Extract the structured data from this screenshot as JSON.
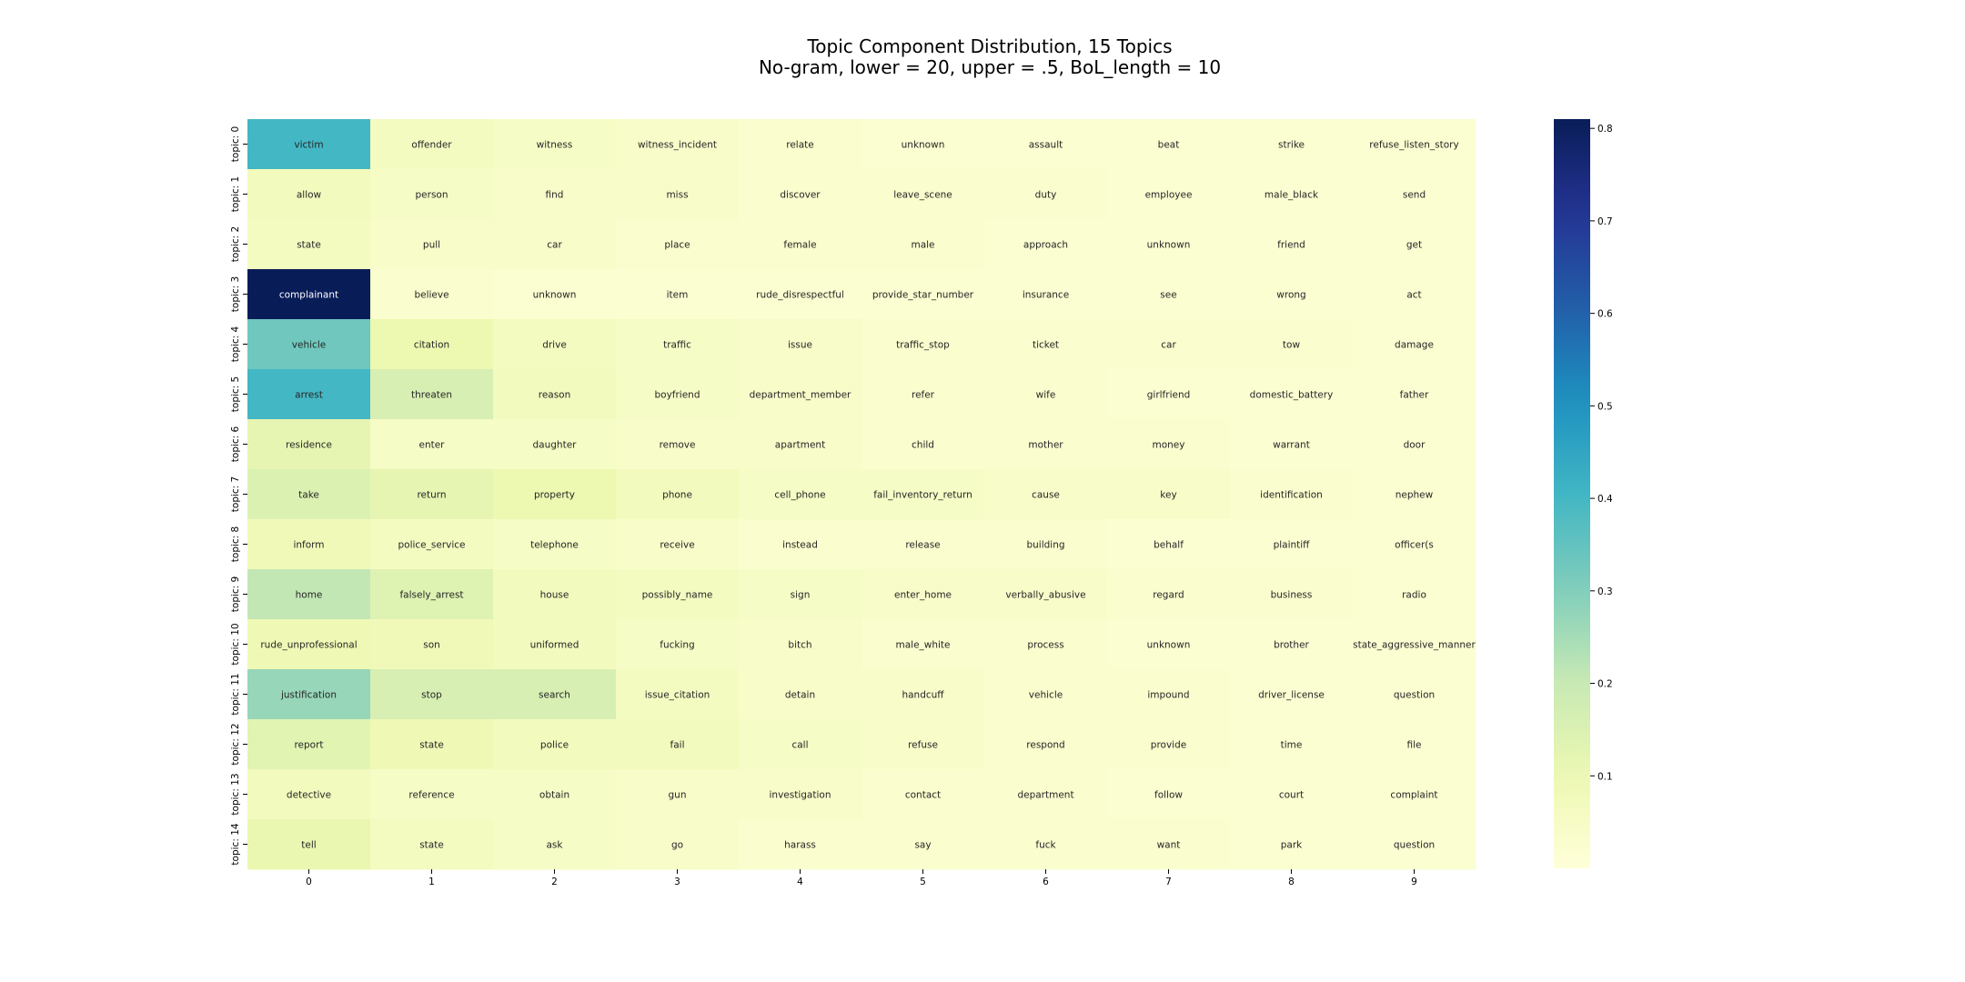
{
  "chart_data": {
    "type": "heatmap",
    "title_lines": [
      "Topic Component Distribution, 15 Topics",
      "No-gram, lower = 20, upper = .5, BoL_length = 10"
    ],
    "x_categories": [
      "0",
      "1",
      "2",
      "3",
      "4",
      "5",
      "6",
      "7",
      "8",
      "9"
    ],
    "y_categories": [
      "topic: 0",
      "topic: 1",
      "topic: 2",
      "topic: 3",
      "topic: 4",
      "topic: 5",
      "topic: 6",
      "topic: 7",
      "topic: 8",
      "topic: 9",
      "topic: 10",
      "topic: 11",
      "topic: 12",
      "topic: 13",
      "topic: 14"
    ],
    "labels": [
      [
        "victim",
        "offender",
        "witness",
        "witness_incident",
        "relate",
        "unknown",
        "assault",
        "beat",
        "strike",
        "refuse_listen_story"
      ],
      [
        "allow",
        "person",
        "find",
        "miss",
        "discover",
        "leave_scene",
        "duty",
        "employee",
        "male_black",
        "send"
      ],
      [
        "state",
        "pull",
        "car",
        "place",
        "female",
        "male",
        "approach",
        "unknown",
        "friend",
        "get"
      ],
      [
        "complainant",
        "believe",
        "unknown",
        "item",
        "rude_disrespectful",
        "provide_star_number",
        "insurance",
        "see",
        "wrong",
        "act"
      ],
      [
        "vehicle",
        "citation",
        "drive",
        "traffic",
        "issue",
        "traffic_stop",
        "ticket",
        "car",
        "tow",
        "damage"
      ],
      [
        "arrest",
        "threaten",
        "reason",
        "boyfriend",
        "department_member",
        "refer",
        "wife",
        "girlfriend",
        "domestic_battery",
        "father"
      ],
      [
        "residence",
        "enter",
        "daughter",
        "remove",
        "apartment",
        "child",
        "mother",
        "money",
        "warrant",
        "door"
      ],
      [
        "take",
        "return",
        "property",
        "phone",
        "cell_phone",
        "fail_inventory_return",
        "cause",
        "key",
        "identification",
        "nephew"
      ],
      [
        "inform",
        "police_service",
        "telephone",
        "receive",
        "instead",
        "release",
        "building",
        "behalf",
        "plaintiff",
        "officer(s"
      ],
      [
        "home",
        "falsely_arrest",
        "house",
        "possibly_name",
        "sign",
        "enter_home",
        "verbally_abusive",
        "regard",
        "business",
        "radio"
      ],
      [
        "rude_unprofessional",
        "son",
        "uniformed",
        "fucking",
        "bitch",
        "male_white",
        "process",
        "unknown",
        "brother",
        "state_aggressive_manner"
      ],
      [
        "justification",
        "stop",
        "search",
        "issue_citation",
        "detain",
        "handcuff",
        "vehicle",
        "impound",
        "driver_license",
        "question"
      ],
      [
        "report",
        "state",
        "police",
        "fail",
        "call",
        "refuse",
        "respond",
        "provide",
        "time",
        "file"
      ],
      [
        "detective",
        "reference",
        "obtain",
        "gun",
        "investigation",
        "contact",
        "department",
        "follow",
        "court",
        "complaint"
      ],
      [
        "tell",
        "state",
        "ask",
        "go",
        "harass",
        "say",
        "fuck",
        "want",
        "park",
        "question"
      ]
    ],
    "values": [
      [
        0.4,
        0.06,
        0.05,
        0.04,
        0.03,
        0.02,
        0.02,
        0.02,
        0.02,
        0.02
      ],
      [
        0.07,
        0.05,
        0.04,
        0.04,
        0.03,
        0.03,
        0.03,
        0.02,
        0.02,
        0.02
      ],
      [
        0.06,
        0.04,
        0.04,
        0.03,
        0.03,
        0.03,
        0.02,
        0.02,
        0.02,
        0.02
      ],
      [
        0.81,
        0.03,
        0.02,
        0.02,
        0.02,
        0.02,
        0.02,
        0.02,
        0.02,
        0.02
      ],
      [
        0.33,
        0.1,
        0.06,
        0.05,
        0.04,
        0.03,
        0.03,
        0.03,
        0.03,
        0.02
      ],
      [
        0.4,
        0.16,
        0.07,
        0.05,
        0.04,
        0.03,
        0.03,
        0.02,
        0.02,
        0.02
      ],
      [
        0.12,
        0.05,
        0.05,
        0.04,
        0.04,
        0.03,
        0.03,
        0.03,
        0.02,
        0.02
      ],
      [
        0.15,
        0.12,
        0.1,
        0.07,
        0.05,
        0.05,
        0.04,
        0.04,
        0.03,
        0.02
      ],
      [
        0.08,
        0.06,
        0.05,
        0.04,
        0.03,
        0.03,
        0.03,
        0.02,
        0.02,
        0.02
      ],
      [
        0.21,
        0.14,
        0.07,
        0.06,
        0.05,
        0.04,
        0.04,
        0.03,
        0.03,
        0.02
      ],
      [
        0.09,
        0.08,
        0.07,
        0.05,
        0.04,
        0.03,
        0.03,
        0.02,
        0.02,
        0.02
      ],
      [
        0.27,
        0.16,
        0.16,
        0.06,
        0.04,
        0.04,
        0.03,
        0.03,
        0.02,
        0.02
      ],
      [
        0.13,
        0.09,
        0.07,
        0.07,
        0.05,
        0.04,
        0.03,
        0.03,
        0.02,
        0.02
      ],
      [
        0.07,
        0.05,
        0.05,
        0.04,
        0.04,
        0.03,
        0.03,
        0.02,
        0.02,
        0.02
      ],
      [
        0.11,
        0.06,
        0.05,
        0.04,
        0.03,
        0.03,
        0.03,
        0.03,
        0.02,
        0.02
      ]
    ],
    "colormap": "YlGnBu",
    "vmin": 0.0,
    "vmax": 0.81,
    "colorbar_ticks": [
      0.1,
      0.2,
      0.3,
      0.4,
      0.5,
      0.6,
      0.7,
      0.8
    ],
    "colorbar_tick_labels": [
      "0.1",
      "0.2",
      "0.3",
      "0.4",
      "0.5",
      "0.6",
      "0.7",
      "0.8"
    ]
  }
}
